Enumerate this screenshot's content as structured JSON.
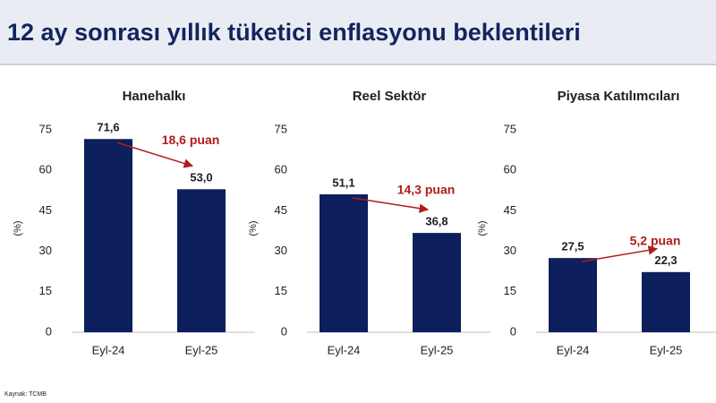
{
  "title": "12 ay sonrası yıllık tüketici enflasyonu beklentileri",
  "source": "Kaynak: TCMB",
  "chart_data": [
    {
      "type": "bar",
      "title": "Hanehalkı",
      "ylabel": "(%)",
      "categories": [
        "Eyl-24",
        "Eyl-25"
      ],
      "values": [
        71.6,
        53.0
      ],
      "value_labels": [
        "71,6",
        "53,0"
      ],
      "annotation": "18,6 puan",
      "color": "#0d1f5c",
      "ylim": [
        0,
        75
      ],
      "yticks": [
        0,
        15,
        30,
        45,
        60,
        75
      ]
    },
    {
      "type": "bar",
      "title": "Reel Sektör",
      "ylabel": "(%)",
      "categories": [
        "Eyl-24",
        "Eyl-25"
      ],
      "values": [
        51.1,
        36.8
      ],
      "value_labels": [
        "51,1",
        "36,8"
      ],
      "annotation": "14,3 puan",
      "color": "#0d1f5c",
      "ylim": [
        0,
        75
      ],
      "yticks": [
        0,
        15,
        30,
        45,
        60,
        75
      ]
    },
    {
      "type": "bar",
      "title": "Piyasa Katılımcıları",
      "ylabel": "(%)",
      "categories": [
        "Eyl-24",
        "Eyl-25"
      ],
      "values": [
        27.5,
        22.3
      ],
      "value_labels": [
        "27,5",
        "22,3"
      ],
      "annotation": "5,2 puan",
      "color": "#0d1f5c",
      "ylim": [
        0,
        75
      ],
      "yticks": [
        0,
        15,
        30,
        45,
        60,
        75
      ]
    }
  ]
}
